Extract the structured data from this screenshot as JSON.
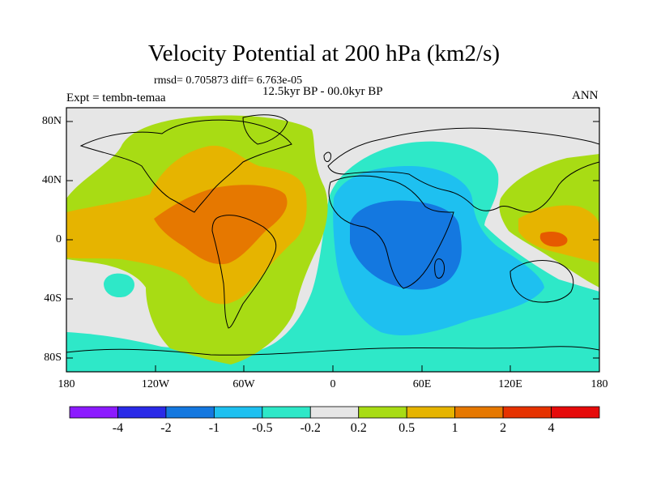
{
  "title": "Velocity Potential at 200 hPa (km2/s)",
  "stats_line": "rmsd= 0.705873 diff= 6.763e-05",
  "left_label": "Expt = tembn-temaa",
  "center_label": "12.5kyr BP - 00.0kyr BP",
  "right_label": "ANN",
  "lat_ticks": [
    "80N",
    "40N",
    "0",
    "40S",
    "80S"
  ],
  "lon_ticks": [
    "180",
    "120W",
    "60W",
    "0",
    "60E",
    "120E",
    "180"
  ],
  "colorbar": {
    "colors": [
      "#8c1aff",
      "#2a2ae8",
      "#1478e0",
      "#1ec0f0",
      "#2ee8c8",
      "#e6e6e6",
      "#a8dc14",
      "#e6b400",
      "#e67800",
      "#e63200",
      "#e60a0a"
    ],
    "labels": [
      "-4",
      "-2",
      "-1",
      "-0.5",
      "-0.2",
      "0.2",
      "0.5",
      "1",
      "2",
      "4"
    ]
  },
  "map": {
    "levels": {
      "land_bg": "#e6e6e6",
      "pos_weak": "#a8dc14",
      "pos_mid": "#e6b400",
      "pos_strong": "#e67800",
      "pos_max": "#e65a00",
      "neg_weak": "#2ee8c8",
      "neg_mid": "#1ec0f0",
      "neg_strong": "#1478e0"
    }
  }
}
